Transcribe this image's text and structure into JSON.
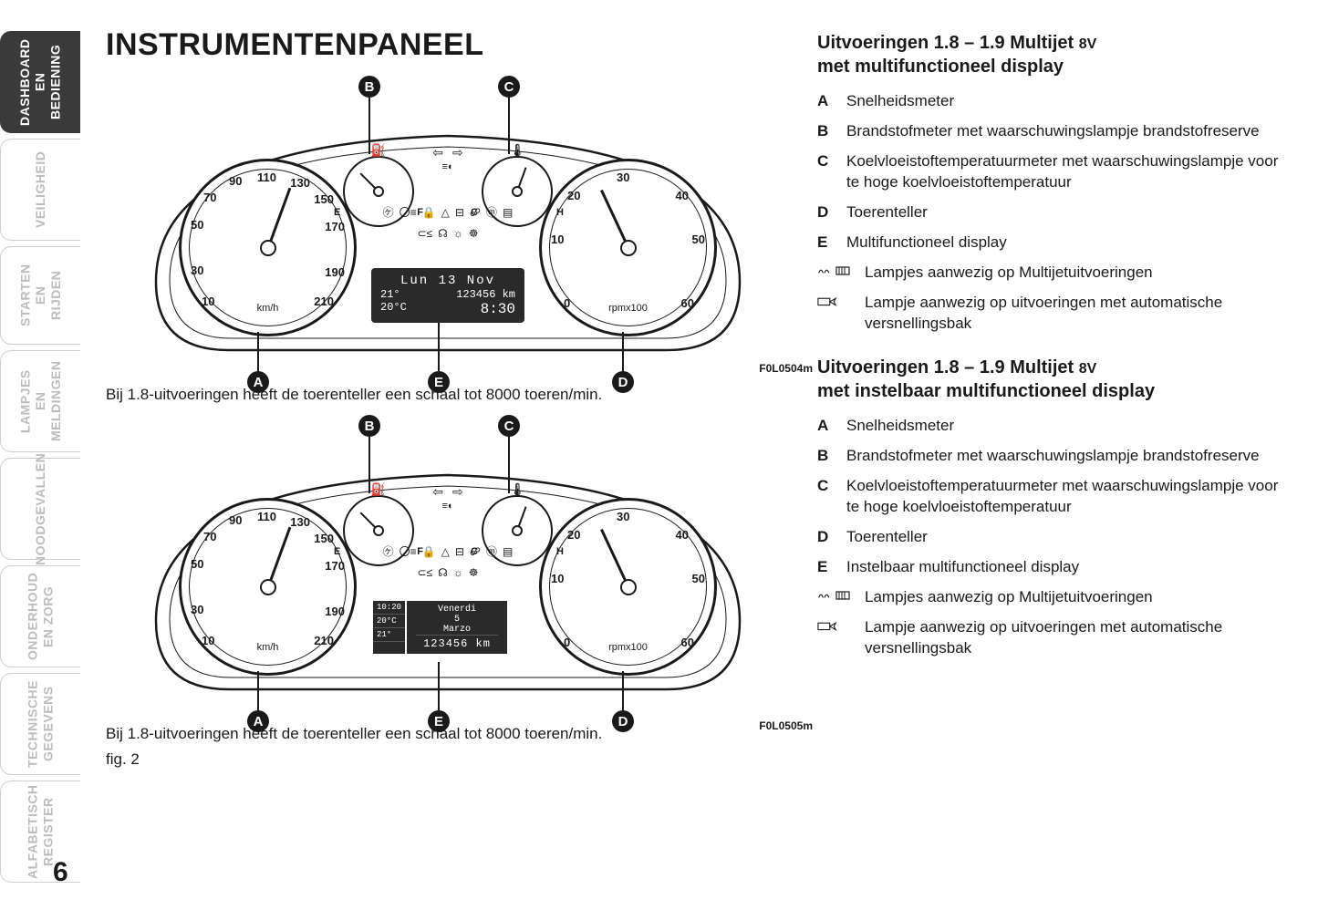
{
  "page_number": "6",
  "title": "INSTRUMENTENPANEEL",
  "tabs": [
    {
      "label": "DASHBOARD\nEN BEDIENING",
      "active": true
    },
    {
      "label": "VEILIGHEID",
      "active": false
    },
    {
      "label": "STARTEN\nEN RIJDEN",
      "active": false
    },
    {
      "label": "LAMPJES\nEN MELDINGEN",
      "active": false
    },
    {
      "label": "NOODGEVALLEN",
      "active": false
    },
    {
      "label": "ONDERHOUD\nEN ZORG",
      "active": false
    },
    {
      "label": "TECHNISCHE\nGEGEVENS",
      "active": false
    },
    {
      "label": "ALFABETISCH\nREGISTER",
      "active": false
    }
  ],
  "figure1": {
    "ref": "F0L0504m",
    "caption": "Bij 1.8-uitvoeringen heeft de toerenteller een schaal tot 8000 toeren/min.",
    "callouts": [
      "A",
      "B",
      "C",
      "D",
      "E"
    ],
    "speedo": {
      "unit": "km/h",
      "ticks": [
        "10",
        "30",
        "50",
        "70",
        "90",
        "110",
        "130",
        "150",
        "170",
        "190",
        "210"
      ]
    },
    "tacho": {
      "unit": "rpmx100",
      "ticks": [
        "0",
        "10",
        "20",
        "30",
        "40",
        "50",
        "60"
      ]
    },
    "fuel": {
      "left": "E",
      "mid": "F",
      "icon": "⛽"
    },
    "temp": {
      "left": "C",
      "mid": "H",
      "icon": "🌡"
    },
    "display": {
      "line1": "Lun 13 Nov",
      "line2_left": "21°",
      "line2_right": "123456 km",
      "line3_left": "20°C",
      "line3_right": "8:30"
    }
  },
  "figure2": {
    "ref": "F0L0505m",
    "caption": "Bij 1.8-uitvoeringen heeft de toerenteller een schaal tot 8000 toeren/min.",
    "fig_label": "fig. 2",
    "display": {
      "time": "10:20",
      "temp": "20°C",
      "ext": "21°",
      "day": "Venerdi",
      "date": "5",
      "month": "Marzo",
      "odo": "123456 km"
    }
  },
  "section1": {
    "heading_main": "Uitvoeringen 1.8 – 1.9 Multijet",
    "heading_sub": "8V",
    "heading_line2": "met multifunctioneel display",
    "items": [
      {
        "key": "A",
        "text": "Snelheidsmeter"
      },
      {
        "key": "B",
        "text": "Brandstofmeter met waarschuwings­lampje brandstofreserve"
      },
      {
        "key": "C",
        "text": "Koelvloeistoftemperatuurmeter met waarschuwingslampje voor te hoge koelvloeistoftemperatuur"
      },
      {
        "key": "D",
        "text": "Toerenteller"
      },
      {
        "key": "E",
        "text": "Multifunctioneel display"
      }
    ],
    "icon_items": [
      {
        "icons": [
          "glow",
          "filter"
        ],
        "text": "Lampjes aanwezig op Multijet­uitvoeringen"
      },
      {
        "icons": [
          "auto"
        ],
        "text": "Lampje aanwezig op uitvoeringen met automatische versnellingsbak"
      }
    ]
  },
  "section2": {
    "heading_main": "Uitvoeringen 1.8 – 1.9 Multijet",
    "heading_sub": "8V",
    "heading_line2": "met instelbaar multifunctioneel display",
    "items": [
      {
        "key": "A",
        "text": "Snelheidsmeter"
      },
      {
        "key": "B",
        "text": "Brandstofmeter met waarschuwings­lampje brandstofreserve"
      },
      {
        "key": "C",
        "text": "Koelvloeistoftemperatuurmeter met waarschuwingslampje voor te hoge koelvloeistoftemperatuur"
      },
      {
        "key": "D",
        "text": "Toerenteller"
      },
      {
        "key": "E",
        "text": "Instelbaar multifunctioneel display"
      }
    ],
    "icon_items": [
      {
        "icons": [
          "glow",
          "filter"
        ],
        "text": "Lampjes aanwezig op Multijet­uitvoeringen"
      },
      {
        "icons": [
          "auto"
        ],
        "text": "Lampje aanwezig op uitvoeringen met automatische versnellingsbak"
      }
    ]
  },
  "colors": {
    "ink": "#1a1a1a",
    "tab_active_bg": "#3a3a3a",
    "tab_inactive_fg": "#bdbdbd",
    "display_bg": "#2a2a2a"
  }
}
